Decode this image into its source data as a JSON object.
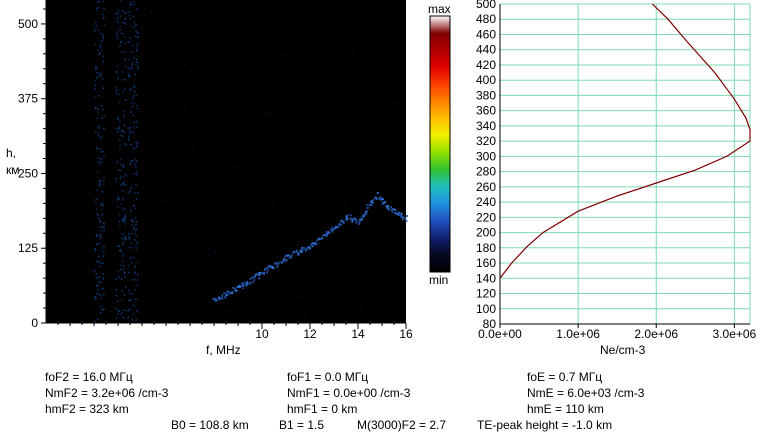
{
  "ionogram": {
    "xlabel": "f, MHz",
    "ylabel_line1": "h,",
    "ylabel_line2": "км",
    "y_ticks": [
      "0",
      "125",
      "250",
      "375",
      "500"
    ],
    "x_ticks": [
      "10",
      "12",
      "14",
      "16"
    ]
  },
  "colorbar": {
    "max_label": "max",
    "min_label": "min",
    "colors": [
      "#ffffff",
      "#800000",
      "#b00000",
      "#e00000",
      "#ff4000",
      "#ff8000",
      "#ffc000",
      "#f0f000",
      "#90e000",
      "#30c030",
      "#20c0c0",
      "#2090e0",
      "#2050c0",
      "#102070",
      "#050a20",
      "#000000"
    ]
  },
  "chart_data": [
    {
      "type": "heatmap",
      "title": "",
      "xlabel": "f, MHz",
      "ylabel": "h, км",
      "x_ticks": [
        10,
        12,
        14,
        16
      ],
      "y_ticks": [
        0,
        125,
        250,
        375,
        500
      ],
      "xlim": [
        1,
        16
      ],
      "ylim": [
        0,
        540
      ],
      "colorbar": {
        "max": "max",
        "min": "min"
      },
      "trace_points": [
        {
          "f": 8.0,
          "h": 40
        },
        {
          "f": 8.5,
          "h": 50
        },
        {
          "f": 9.0,
          "h": 60
        },
        {
          "f": 9.5,
          "h": 72
        },
        {
          "f": 10.0,
          "h": 85
        },
        {
          "f": 10.5,
          "h": 98
        },
        {
          "f": 11.0,
          "h": 112
        },
        {
          "f": 11.5,
          "h": 120
        },
        {
          "f": 12.0,
          "h": 130
        },
        {
          "f": 12.5,
          "h": 145
        },
        {
          "f": 13.0,
          "h": 160
        },
        {
          "f": 13.5,
          "h": 180
        },
        {
          "f": 14.0,
          "h": 170
        },
        {
          "f": 14.4,
          "h": 195
        },
        {
          "f": 14.8,
          "h": 215
        },
        {
          "f": 15.2,
          "h": 195
        },
        {
          "f": 15.6,
          "h": 185
        },
        {
          "f": 16.0,
          "h": 175
        }
      ],
      "noise_bands_f": [
        3.2,
        4.1,
        4.6
      ]
    },
    {
      "type": "line",
      "title": "",
      "xlabel": "Ne/cm-3",
      "ylabel": "",
      "xlim": [
        0,
        3200000.0
      ],
      "ylim": [
        80,
        500
      ],
      "x_ticks": [
        "0.0e+00",
        "1.0e+06",
        "2.0e+06",
        "3.0e+06"
      ],
      "y_ticks": [
        80,
        100,
        120,
        140,
        160,
        180,
        200,
        220,
        240,
        260,
        280,
        300,
        320,
        340,
        360,
        380,
        400,
        420,
        440,
        460,
        480,
        500
      ],
      "grid": true,
      "series": [
        {
          "color": "#800000",
          "points": [
            {
              "x": 0.0,
              "y": 140
            },
            {
              "x": 150000.0,
              "y": 160
            },
            {
              "x": 350000.0,
              "y": 182
            },
            {
              "x": 550000.0,
              "y": 200
            },
            {
              "x": 1000000.0,
              "y": 228
            },
            {
              "x": 1500000.0,
              "y": 248
            },
            {
              "x": 2000000.0,
              "y": 265
            },
            {
              "x": 2500000.0,
              "y": 282
            },
            {
              "x": 2900000.0,
              "y": 300
            },
            {
              "x": 3200000.0,
              "y": 320
            },
            {
              "x": 3200000.0,
              "y": 335
            },
            {
              "x": 3150000.0,
              "y": 350
            },
            {
              "x": 3000000.0,
              "y": 375
            },
            {
              "x": 2750000.0,
              "y": 410
            },
            {
              "x": 2400000.0,
              "y": 450
            },
            {
              "x": 2150000.0,
              "y": 480
            },
            {
              "x": 1950000.0,
              "y": 500
            }
          ]
        }
      ]
    }
  ],
  "params": {
    "foF2": "foF2 = 16.0 МГц",
    "NmF2": "NmF2 = 3.2e+06 /cm-3",
    "hmF2": "hmF2 = 323 km",
    "foF1": "foF1 = 0.0 МГц",
    "NmF1": "NmF1 = 0.0e+00 /cm-3",
    "hmF1": "hmF1 = 0 km",
    "foE": "foE = 0.7 МГц",
    "NmE": "NmE = 6.0e+03 /cm-3",
    "hmE": "hmE = 110 km",
    "B0": "B0 = 108.8 km",
    "B1": "B1 = 1.5",
    "M3000": "M(3000)F2 = 2.7",
    "TE": "TE-peak height = -1.0 km"
  }
}
